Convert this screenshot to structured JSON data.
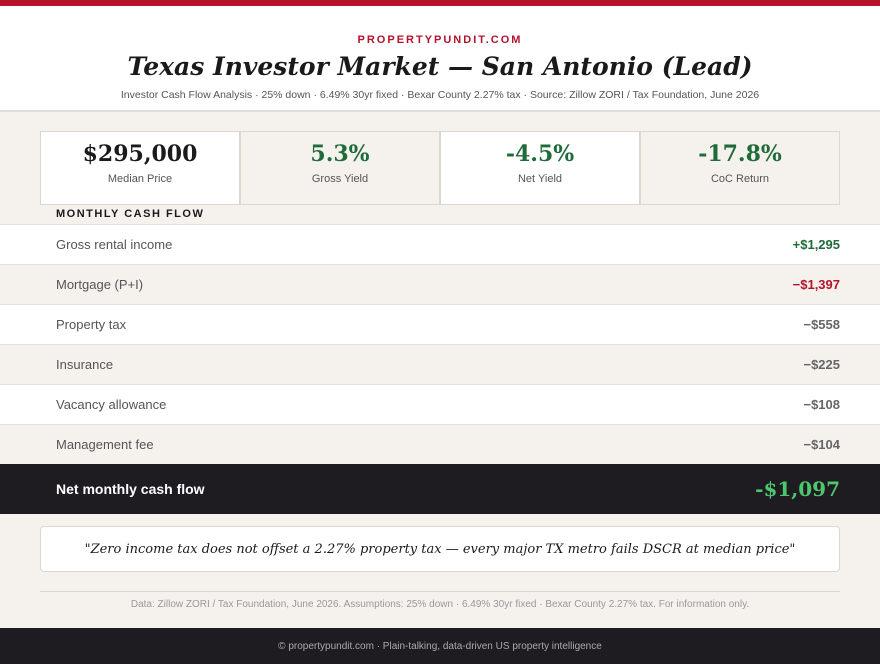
{
  "header": {
    "brand": "PROPERTYPUNDIT.COM",
    "title": "Texas Investor Market — San Antonio (Lead)",
    "subtitle": "Investor Cash Flow Analysis · 25% down · 6.49% 30yr fixed · Bexar County 2.27% tax · Source: Zillow ZORI / Tax Foundation, June 2026"
  },
  "kpis": [
    {
      "value": "$295,000",
      "label": "Median Price"
    },
    {
      "value": "5.3%",
      "label": "Gross Yield"
    },
    {
      "value": "-4.5%",
      "label": "Net Yield"
    },
    {
      "value": "-17.8%",
      "label": "CoC Return"
    }
  ],
  "cash_flow": {
    "heading": "MONTHLY CASH FLOW",
    "rows": [
      [
        "Gross rental income",
        "+$1,295"
      ],
      [
        "Mortgage (P+I)",
        "−$1,397"
      ],
      [
        "Property tax",
        "−$558"
      ],
      [
        "Insurance",
        "−$225"
      ],
      [
        "Vacancy allowance",
        "−$108"
      ],
      [
        "Management fee",
        "−$104"
      ]
    ],
    "total": [
      "Net monthly cash flow",
      "-$1,097"
    ]
  },
  "quote": "\"Zero income tax does not offset a 2.27% property tax — every major TX metro fails DSCR at median price\"",
  "footnote": "Data: Zillow ZORI / Tax Foundation, June 2026. Assumptions: 25% down · 6.49% 30yr fixed · Bexar County 2.27% tax. For information only.",
  "footer": "© propertypundit.com · Plain-talking, data-driven US property intelligence"
}
